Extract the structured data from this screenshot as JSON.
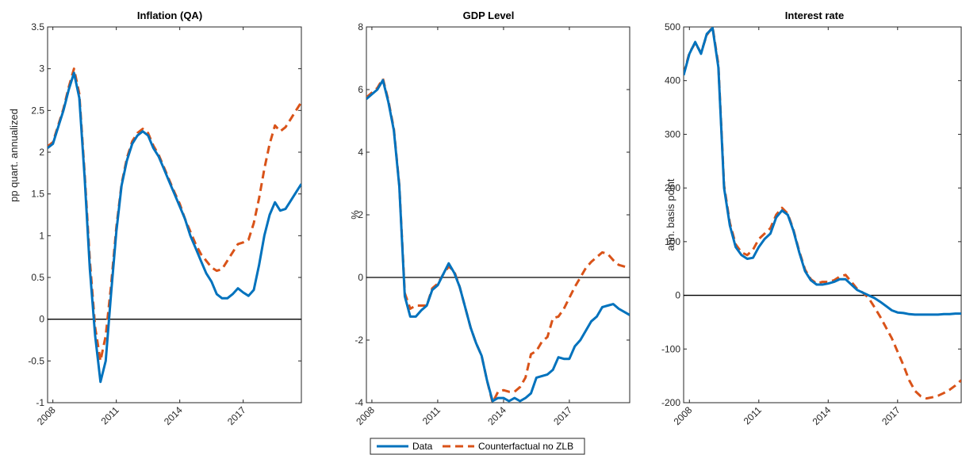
{
  "legend": {
    "data_label": "Data",
    "counterfactual_label": "Counterfactual no ZLB"
  },
  "colors": {
    "data": "#0072BD",
    "counterfactual": "#D95319",
    "zero_line": "#000000",
    "axis": "#262626"
  },
  "chart_data": [
    {
      "type": "line",
      "title": "Inflation (QA)",
      "xlabel": "",
      "ylabel": "pp quart. annualized",
      "xlim": [
        2007.75,
        2019.75
      ],
      "ylim": [
        -1,
        3.5
      ],
      "yticks": [
        -1,
        -0.5,
        0,
        0.5,
        1,
        1.5,
        2,
        2.5,
        3,
        3.5
      ],
      "ytick_labels": [
        "-1",
        "-0.5",
        "0",
        "0.5",
        "1",
        "1.5",
        "2",
        "2.5",
        "3",
        "3.5"
      ],
      "xticks": [
        2008,
        2011,
        2014,
        2017
      ],
      "xtick_labels": [
        "2008",
        "2011",
        "2014",
        "2017"
      ],
      "grid": false,
      "reference_line_y": 0,
      "x": [
        2007.75,
        2008.0,
        2008.25,
        2008.5,
        2008.75,
        2009.0,
        2009.25,
        2009.5,
        2009.75,
        2010.0,
        2010.25,
        2010.5,
        2010.75,
        2011.0,
        2011.25,
        2011.5,
        2011.75,
        2012.0,
        2012.25,
        2012.5,
        2012.75,
        2013.0,
        2013.25,
        2013.5,
        2013.75,
        2014.0,
        2014.25,
        2014.5,
        2014.75,
        2015.0,
        2015.25,
        2015.5,
        2015.75,
        2016.0,
        2016.25,
        2016.5,
        2016.75,
        2017.0,
        2017.25,
        2017.5,
        2017.75,
        2018.0,
        2018.25,
        2018.5,
        2018.75,
        2019.0,
        2019.25,
        2019.5,
        2019.75
      ],
      "series": [
        {
          "name": "Data",
          "values": [
            2.05,
            2.1,
            2.3,
            2.5,
            2.75,
            2.95,
            2.65,
            1.7,
            0.6,
            -0.2,
            -0.75,
            -0.5,
            0.3,
            1.05,
            1.6,
            1.9,
            2.1,
            2.2,
            2.25,
            2.2,
            2.05,
            1.95,
            1.8,
            1.65,
            1.5,
            1.35,
            1.2,
            1.0,
            0.85,
            0.7,
            0.55,
            0.45,
            0.3,
            0.25,
            0.25,
            0.3,
            0.37,
            0.32,
            0.28,
            0.35,
            0.65,
            1.0,
            1.25,
            1.4,
            1.3,
            1.32,
            1.42,
            1.52,
            1.62
          ]
        },
        {
          "name": "Counterfactual no ZLB",
          "values": [
            2.07,
            2.12,
            2.32,
            2.52,
            2.78,
            3.0,
            2.7,
            1.75,
            0.7,
            -0.1,
            -0.5,
            -0.2,
            0.4,
            1.1,
            1.62,
            1.93,
            2.13,
            2.23,
            2.28,
            2.23,
            2.08,
            1.97,
            1.82,
            1.67,
            1.52,
            1.38,
            1.2,
            1.05,
            0.9,
            0.78,
            0.7,
            0.62,
            0.58,
            0.6,
            0.7,
            0.8,
            0.9,
            0.92,
            0.95,
            1.15,
            1.45,
            1.8,
            2.1,
            2.32,
            2.25,
            2.3,
            2.4,
            2.5,
            2.6
          ]
        }
      ]
    },
    {
      "type": "line",
      "title": "GDP Level",
      "xlabel": "",
      "ylabel": "%",
      "xlim": [
        2007.75,
        2019.75
      ],
      "ylim": [
        -4,
        8
      ],
      "yticks": [
        -4,
        -2,
        0,
        2,
        4,
        6,
        8
      ],
      "ytick_labels": [
        "-4",
        "-2",
        "0",
        "2",
        "4",
        "6",
        "8"
      ],
      "xticks": [
        2008,
        2011,
        2014,
        2017
      ],
      "xtick_labels": [
        "2008",
        "2011",
        "2014",
        "2017"
      ],
      "grid": false,
      "reference_line_y": 0,
      "x": [
        2007.75,
        2008.0,
        2008.25,
        2008.5,
        2008.75,
        2009.0,
        2009.25,
        2009.5,
        2009.75,
        2010.0,
        2010.25,
        2010.5,
        2010.75,
        2011.0,
        2011.25,
        2011.5,
        2011.75,
        2012.0,
        2012.25,
        2012.5,
        2012.75,
        2013.0,
        2013.25,
        2013.5,
        2013.75,
        2014.0,
        2014.25,
        2014.5,
        2014.75,
        2015.0,
        2015.25,
        2015.5,
        2015.75,
        2016.0,
        2016.25,
        2016.5,
        2016.75,
        2017.0,
        2017.25,
        2017.5,
        2017.75,
        2018.0,
        2018.25,
        2018.5,
        2018.75,
        2019.0,
        2019.25,
        2019.5,
        2019.75
      ],
      "series": [
        {
          "name": "Data",
          "values": [
            5.7,
            5.85,
            6.0,
            6.3,
            5.6,
            4.7,
            2.9,
            -0.6,
            -1.25,
            -1.25,
            -1.05,
            -0.9,
            -0.4,
            -0.25,
            0.1,
            0.45,
            0.15,
            -0.3,
            -0.95,
            -1.6,
            -2.1,
            -2.5,
            -3.3,
            -3.95,
            -3.85,
            -3.85,
            -3.95,
            -3.85,
            -3.95,
            -3.85,
            -3.7,
            -3.2,
            -3.15,
            -3.1,
            -2.95,
            -2.55,
            -2.6,
            -2.6,
            -2.2,
            -2.0,
            -1.7,
            -1.4,
            -1.25,
            -0.95,
            -0.9,
            -0.85,
            -1.0,
            -1.1,
            -1.2
          ]
        },
        {
          "name": "Counterfactual no ZLB",
          "values": [
            5.75,
            5.9,
            6.05,
            6.35,
            5.65,
            4.75,
            2.95,
            -0.5,
            -1.0,
            -0.9,
            -0.9,
            -0.9,
            -0.35,
            -0.2,
            0.1,
            0.35,
            0.2,
            -0.3,
            -0.95,
            -1.6,
            -2.1,
            -2.5,
            -3.3,
            -4.0,
            -3.65,
            -3.6,
            -3.65,
            -3.65,
            -3.5,
            -3.2,
            -2.45,
            -2.35,
            -2.05,
            -1.9,
            -1.3,
            -1.25,
            -1.0,
            -0.65,
            -0.3,
            0.0,
            0.3,
            0.5,
            0.65,
            0.8,
            0.75,
            0.55,
            0.4,
            0.35,
            0.3
          ]
        }
      ]
    },
    {
      "type": "line",
      "title": "Interest rate",
      "xlabel": "",
      "ylabel": "ann. basis point",
      "xlim": [
        2007.75,
        2019.75
      ],
      "ylim": [
        -200,
        500
      ],
      "yticks": [
        -200,
        -100,
        0,
        100,
        200,
        300,
        400,
        500
      ],
      "ytick_labels": [
        "-200",
        "-100",
        "0",
        "100",
        "200",
        "300",
        "400",
        "500"
      ],
      "xticks": [
        2008,
        2011,
        2014,
        2017
      ],
      "xtick_labels": [
        "2008",
        "2011",
        "2014",
        "2017"
      ],
      "grid": false,
      "reference_line_y": 0,
      "x": [
        2007.75,
        2008.0,
        2008.25,
        2008.5,
        2008.75,
        2009.0,
        2009.25,
        2009.5,
        2009.75,
        2010.0,
        2010.25,
        2010.5,
        2010.75,
        2011.0,
        2011.25,
        2011.5,
        2011.75,
        2012.0,
        2012.25,
        2012.5,
        2012.75,
        2013.0,
        2013.25,
        2013.5,
        2013.75,
        2014.0,
        2014.25,
        2014.5,
        2014.75,
        2015.0,
        2015.25,
        2015.5,
        2015.75,
        2016.0,
        2016.25,
        2016.5,
        2016.75,
        2017.0,
        2017.25,
        2017.5,
        2017.75,
        2018.0,
        2018.25,
        2018.5,
        2018.75,
        2019.0,
        2019.25,
        2019.5,
        2019.75
      ],
      "series": [
        {
          "name": "Data",
          "values": [
            410,
            450,
            472,
            450,
            487,
            498,
            425,
            200,
            130,
            90,
            75,
            68,
            70,
            90,
            105,
            115,
            145,
            158,
            150,
            120,
            80,
            45,
            28,
            20,
            20,
            22,
            25,
            30,
            30,
            20,
            10,
            5,
            0,
            -5,
            -12,
            -20,
            -28,
            -32,
            -33,
            -35,
            -36,
            -36,
            -36,
            -36,
            -36,
            -35,
            -35,
            -34,
            -34
          ]
        },
        {
          "name": "Counterfactual no ZLB",
          "values": [
            412,
            452,
            470,
            452,
            485,
            500,
            430,
            205,
            135,
            95,
            80,
            75,
            85,
            105,
            115,
            125,
            150,
            163,
            152,
            122,
            82,
            48,
            30,
            22,
            25,
            25,
            28,
            35,
            38,
            25,
            12,
            5,
            -5,
            -22,
            -40,
            -60,
            -80,
            -105,
            -130,
            -158,
            -178,
            -188,
            -192,
            -190,
            -187,
            -182,
            -176,
            -168,
            -158
          ]
        }
      ]
    }
  ]
}
